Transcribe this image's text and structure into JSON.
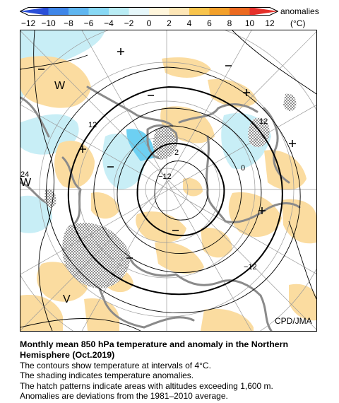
{
  "legend": {
    "title": "anomalies",
    "unit": "(°C)",
    "ticks": [
      "−12",
      "−10",
      "−8",
      "−6",
      "−4",
      "−2",
      "0",
      "2",
      "4",
      "6",
      "8",
      "10",
      "12"
    ],
    "colors": [
      "#2a4fd8",
      "#3f86e8",
      "#5fb6f0",
      "#88d8f4",
      "#b9ecf4",
      "#e6f7fa",
      "#fff6dc",
      "#fde6b6",
      "#f8c44c",
      "#f2a02a",
      "#ec6a20",
      "#e5302a"
    ]
  },
  "map": {
    "projection": "polar stereographic, North Pole centered",
    "contour_interval_c": 4,
    "contour_labels": [
      "12",
      "12",
      "2",
      "−12",
      "0",
      "24",
      "−12"
    ],
    "region_marks": [
      "W",
      "W",
      "V"
    ],
    "warm_marks_count": 5,
    "cold_marks_count": 6,
    "hatch_regions": [
      "Greenland",
      "Tibetan Plateau",
      "Rocky Mountains"
    ],
    "colors": {
      "warm": "#fbdca0",
      "cold": "#c8eef6",
      "strong_cold": "#6dd0f2",
      "land": "#8a8a8a",
      "contour": "#000000",
      "grid": "#9a9a9a"
    }
  },
  "credit": "CPD/JMA",
  "caption": {
    "title": "Monthly mean 850 hPa temperature and anomaly in the Northern Hemisphere (Oct.2019)",
    "lines": [
      "The contours show temperature at intervals of 4°C.",
      "The shading indicates temperature anomalies.",
      "The hatch patterns indicate areas with altitudes exceeding 1,600 m.",
      "Anomalies are deviations from the 1981–2010 average."
    ]
  }
}
